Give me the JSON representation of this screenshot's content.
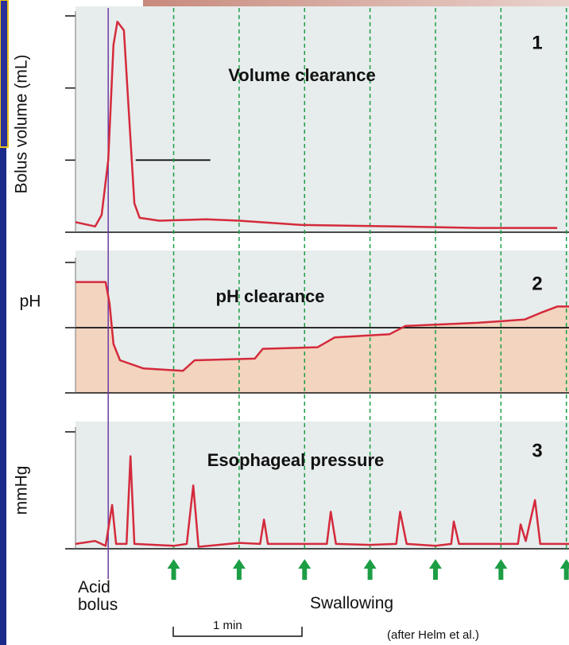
{
  "chart_data": [
    {
      "type": "line",
      "title": "Volume clearance",
      "annotation": "1",
      "ylabel": "Bolus volume (mL)",
      "x": [
        -0.25,
        -0.1,
        -0.05,
        0,
        0.04,
        0.07,
        0.12,
        0.16,
        0.2,
        0.24,
        0.39,
        0.75,
        1.0,
        1.48,
        2.21,
        2.82,
        3.43
      ],
      "values": [
        0.7,
        0.4,
        1.2,
        5,
        13,
        14.6,
        14,
        8,
        2,
        1,
        0.8,
        0.9,
        0.8,
        0.5,
        0.4,
        0.3,
        0.3
      ],
      "color": "#d42a3c",
      "xlim": [
        -0.25,
        3.52
      ],
      "ylim": [
        0,
        15
      ],
      "yticks": [
        0,
        5,
        10,
        15
      ],
      "reference_line": {
        "y": 5,
        "x": [
          0.21,
          0.78
        ]
      }
    },
    {
      "type": "area",
      "title": "pH clearance",
      "annotation": "2",
      "ylabel": "pH",
      "x": [
        -0.25,
        -0.02,
        0.01,
        0.04,
        0.09,
        0.27,
        0.57,
        0.66,
        1.12,
        1.18,
        1.6,
        1.73,
        2.15,
        2.27,
        2.82,
        3.18,
        3.3,
        3.43,
        3.52
      ],
      "values": [
        6.8,
        6.8,
        5.5,
        3,
        2,
        1.5,
        1.35,
        2,
        2.1,
        2.7,
        2.8,
        3.4,
        3.6,
        4.1,
        4.3,
        4.5,
        4.9,
        5.3,
        5.3
      ],
      "color": "#d42a3c",
      "fill": "#f3d4bf",
      "xlim": [
        -0.25,
        3.52
      ],
      "ylim": [
        0,
        8
      ],
      "yticks": [
        0,
        4,
        8
      ],
      "reference_line": {
        "y": 4,
        "x": [
          -0.25,
          3.52
        ]
      }
    },
    {
      "type": "line",
      "title": "Esophageal pressure",
      "annotation": "3",
      "ylabel": "mmHg",
      "x": [
        -0.25,
        -0.1,
        -0.02,
        0.03,
        0.06,
        0.14,
        0.17,
        0.2,
        0.5,
        0.6,
        0.65,
        0.69,
        1.0,
        1.16,
        1.19,
        1.22,
        1.5,
        1.67,
        1.7,
        1.74,
        2.0,
        2.2,
        2.23,
        2.28,
        2.5,
        2.62,
        2.64,
        2.68,
        3.0,
        3.13,
        3.15,
        3.19,
        3.26,
        3.3,
        3.52
      ],
      "values": [
        5,
        8,
        3,
        45,
        5,
        5,
        95,
        5,
        3,
        5,
        65,
        2,
        6,
        5,
        30,
        5,
        5,
        5,
        38,
        5,
        4,
        5,
        38,
        5,
        3,
        5,
        28,
        5,
        5,
        5,
        25,
        8,
        50,
        5,
        5
      ],
      "color": "#d42a3c",
      "xlim": [
        -0.25,
        3.52
      ],
      "ylim": [
        0,
        120
      ],
      "yticks": [
        0,
        120
      ]
    }
  ],
  "events": {
    "bolus": 0,
    "bolus_color": "#6b3aa3",
    "swallows": [
      0.5,
      1,
      1.5,
      2,
      2.5,
      3,
      3.5
    ],
    "swallow_color": "#1d9e45"
  },
  "labels": {
    "bolus": "Acid bolus",
    "swallowing": "Swallowing",
    "scale": "1 min",
    "source": "(after Helm et al.)"
  }
}
